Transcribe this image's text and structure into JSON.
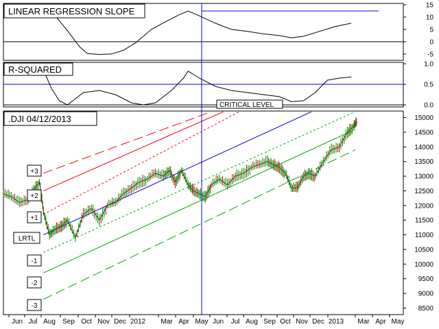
{
  "chart_data": [
    {
      "type": "line",
      "title": "LINEAR REGRESSION SLOPE",
      "yticks": [
        "15",
        "10",
        "5",
        "0",
        "-5"
      ],
      "ylim": [
        -7,
        15
      ],
      "zero_line": 0,
      "reference_value": 12.5,
      "series": [
        {
          "points": [
            [
              0.1,
              14.5
            ],
            [
              0.13,
              10.5
            ],
            [
              0.16,
              4.5
            ],
            [
              0.19,
              -2.0
            ],
            [
              0.21,
              -4.8
            ],
            [
              0.24,
              -5.2
            ],
            [
              0.27,
              -5.0
            ],
            [
              0.3,
              -3.5
            ],
            [
              0.33,
              -0.5
            ],
            [
              0.37,
              5.0
            ],
            [
              0.41,
              8.5
            ],
            [
              0.44,
              11.0
            ],
            [
              0.462,
              12.5
            ],
            [
              0.49,
              10.5
            ],
            [
              0.53,
              7.5
            ],
            [
              0.57,
              5.0
            ],
            [
              0.61,
              4.2
            ],
            [
              0.65,
              3.2
            ],
            [
              0.69,
              2.5
            ],
            [
              0.72,
              1.6
            ],
            [
              0.75,
              2.2
            ],
            [
              0.79,
              4.2
            ],
            [
              0.83,
              6.2
            ],
            [
              0.87,
              7.5
            ]
          ]
        }
      ]
    },
    {
      "type": "line",
      "title": "R-SQUARED",
      "yticks": [
        "1.0",
        "0.5",
        "0.0"
      ],
      "ylim": [
        0,
        1
      ],
      "reference_value": 0.5,
      "critical_label": "CRITICAL LEVEL",
      "series": [
        {
          "points": [
            [
              0.1,
              0.85
            ],
            [
              0.12,
              0.4
            ],
            [
              0.14,
              0.1
            ],
            [
              0.16,
              0.0
            ],
            [
              0.18,
              0.15
            ],
            [
              0.2,
              0.3
            ],
            [
              0.24,
              0.35
            ],
            [
              0.28,
              0.25
            ],
            [
              0.32,
              0.05
            ],
            [
              0.35,
              0.0
            ],
            [
              0.38,
              0.05
            ],
            [
              0.42,
              0.35
            ],
            [
              0.45,
              0.65
            ],
            [
              0.462,
              0.82
            ],
            [
              0.49,
              0.65
            ],
            [
              0.53,
              0.45
            ],
            [
              0.57,
              0.35
            ],
            [
              0.61,
              0.3
            ],
            [
              0.65,
              0.25
            ],
            [
              0.69,
              0.2
            ],
            [
              0.72,
              0.08
            ],
            [
              0.75,
              0.1
            ],
            [
              0.78,
              0.3
            ],
            [
              0.81,
              0.6
            ],
            [
              0.84,
              0.65
            ],
            [
              0.87,
              0.68
            ]
          ]
        }
      ]
    },
    {
      "type": "line",
      "title": ".DJI  04/12/2013",
      "yticks": [
        "15000",
        "14500",
        "14000",
        "13500",
        "13000",
        "12500",
        "12000",
        "11500",
        "11000",
        "10500",
        "10000",
        "9500",
        "9000",
        "8500"
      ],
      "ylim": [
        8300,
        15200
      ],
      "xticks": [
        "Jun",
        "Jul",
        "Aug",
        "Sep",
        "Oct",
        "Nov",
        "Dec",
        "2012",
        "Mar",
        "Apr",
        "May",
        "Jun",
        "Jul",
        "Aug",
        "Sep",
        "Oct",
        "Nov",
        "Dec",
        "2013",
        "Mar",
        "Apr",
        "May"
      ],
      "band_labels": [
        "+3",
        "+2",
        "+1",
        "LRTL",
        "-1",
        "-2",
        "-3"
      ],
      "price_series": [
        [
          0.0,
          12400
        ],
        [
          0.02,
          12300
        ],
        [
          0.04,
          12100
        ],
        [
          0.06,
          12200
        ],
        [
          0.075,
          12500
        ],
        [
          0.09,
          12800
        ],
        [
          0.1,
          11800
        ],
        [
          0.115,
          11000
        ],
        [
          0.13,
          11200
        ],
        [
          0.145,
          11300
        ],
        [
          0.16,
          11500
        ],
        [
          0.18,
          10900
        ],
        [
          0.2,
          11700
        ],
        [
          0.22,
          11900
        ],
        [
          0.24,
          11500
        ],
        [
          0.26,
          12000
        ],
        [
          0.28,
          12100
        ],
        [
          0.3,
          12400
        ],
        [
          0.32,
          12600
        ],
        [
          0.34,
          12800
        ],
        [
          0.36,
          12900
        ],
        [
          0.38,
          13100
        ],
        [
          0.4,
          13000
        ],
        [
          0.415,
          13200
        ],
        [
          0.43,
          12800
        ],
        [
          0.445,
          13200
        ],
        [
          0.462,
          12700
        ],
        [
          0.475,
          12500
        ],
        [
          0.49,
          12400
        ],
        [
          0.505,
          12300
        ],
        [
          0.52,
          12700
        ],
        [
          0.54,
          12900
        ],
        [
          0.56,
          12700
        ],
        [
          0.58,
          13000
        ],
        [
          0.6,
          13100
        ],
        [
          0.62,
          13300
        ],
        [
          0.64,
          13400
        ],
        [
          0.66,
          13500
        ],
        [
          0.675,
          13400
        ],
        [
          0.69,
          13300
        ],
        [
          0.705,
          13100
        ],
        [
          0.72,
          12600
        ],
        [
          0.735,
          12600
        ],
        [
          0.75,
          13000
        ],
        [
          0.765,
          13100
        ],
        [
          0.78,
          13000
        ],
        [
          0.8,
          13500
        ],
        [
          0.82,
          13900
        ],
        [
          0.84,
          14000
        ],
        [
          0.86,
          14500
        ],
        [
          0.875,
          14700
        ],
        [
          0.885,
          14850
        ]
      ],
      "regression_line": [
        [
          0.1,
          11000
        ],
        [
          0.77,
          15200
        ]
      ],
      "channel_lines": [
        {
          "label": "+3",
          "color": "#ff0000",
          "style": "long-dash",
          "from": [
            0.1,
            13100
          ],
          "to": [
            0.52,
            15200
          ]
        },
        {
          "label": "+2",
          "color": "#ff0000",
          "style": "solid",
          "from": [
            0.1,
            12500
          ],
          "to": [
            0.55,
            15200
          ]
        },
        {
          "label": "+1",
          "color": "#ff0000",
          "style": "short-dash",
          "from": [
            0.1,
            11700
          ],
          "to": [
            0.59,
            15200
          ]
        },
        {
          "label": "upper-green",
          "color": "#00aa00",
          "style": "short-dash",
          "from": [
            0.1,
            10400
          ],
          "to": [
            0.88,
            15200
          ]
        },
        {
          "label": "-1",
          "color": "#00aa00",
          "style": "solid",
          "from": [
            0.1,
            9700
          ],
          "to": [
            0.88,
            14600
          ]
        },
        {
          "label": "-2",
          "color": "#00aa00",
          "style": "long-dash",
          "from": [
            0.1,
            8800
          ],
          "to": [
            0.88,
            13900
          ]
        }
      ],
      "vertical_marker_x": 0.462
    }
  ]
}
